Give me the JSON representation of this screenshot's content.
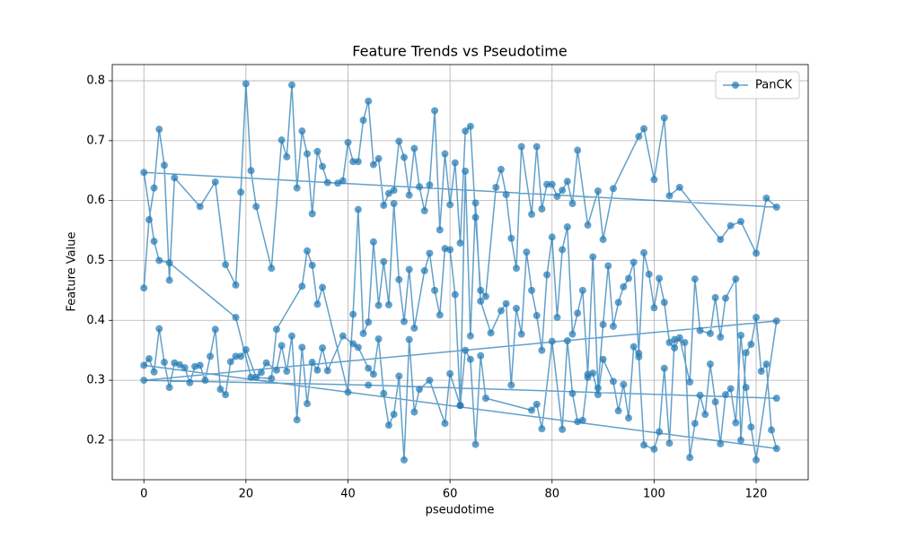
{
  "chart_data": {
    "type": "line",
    "title": "Feature Trends vs Pseudotime",
    "x_label": "pseudotime",
    "y_label": "Feature Value",
    "xlim": [
      -6.2,
      130.2
    ],
    "ylim": [
      0.134,
      0.827
    ],
    "xticks": [
      0,
      20,
      40,
      60,
      80,
      100,
      120
    ],
    "yticks": [
      0.2,
      0.3,
      0.4,
      0.5,
      0.6,
      0.7,
      0.8
    ],
    "grid": true,
    "legend": "upper right",
    "markers": true,
    "x": [
      0,
      1,
      2,
      3,
      4,
      5,
      6,
      11,
      14,
      16,
      18,
      19,
      20,
      21,
      22,
      25,
      27,
      28,
      29,
      30,
      31,
      32,
      33,
      34,
      35,
      36,
      38,
      39,
      40,
      41,
      42,
      43,
      44,
      45,
      46,
      47,
      48,
      49,
      50,
      51,
      52,
      53,
      54,
      55,
      56,
      57,
      58,
      59,
      60,
      61,
      62,
      63,
      64,
      65,
      66,
      67,
      69,
      70,
      71,
      72,
      73,
      74,
      76,
      77,
      78,
      79,
      80,
      81,
      82,
      83,
      84,
      85,
      87,
      89,
      90,
      92,
      97,
      98,
      100,
      102,
      103,
      105,
      113,
      115,
      117,
      120,
      122,
      124,
      0,
      2,
      3,
      5,
      18,
      21,
      25,
      26,
      31,
      32,
      33,
      34,
      35,
      40,
      41,
      42,
      43,
      44,
      45,
      46,
      47,
      48,
      49,
      50,
      51,
      52,
      53,
      55,
      56,
      57,
      58,
      59,
      60,
      61,
      62,
      63,
      64,
      65,
      66,
      68,
      70,
      71,
      72,
      73,
      74,
      75,
      76,
      77,
      78,
      79,
      80,
      81,
      82,
      83,
      84,
      85,
      86,
      87,
      88,
      89,
      90,
      91,
      92,
      93,
      94,
      95,
      96,
      97,
      98,
      99,
      100,
      101,
      102,
      103,
      104,
      105,
      107,
      108,
      109,
      111,
      112,
      113,
      114,
      116,
      117,
      118,
      119,
      120,
      121,
      122,
      123,
      124,
      0,
      1,
      2,
      3,
      4,
      5,
      6,
      7,
      8,
      9,
      10,
      11,
      12,
      13,
      14,
      15,
      16,
      17,
      18,
      19,
      20,
      22,
      23,
      24,
      26,
      27,
      28,
      29,
      30,
      31,
      32,
      33,
      34,
      35,
      36,
      39,
      41,
      42,
      44,
      45,
      46,
      47,
      48,
      49,
      50,
      51,
      52,
      53,
      54,
      56,
      59,
      60,
      62,
      63,
      64,
      65,
      66,
      67,
      76,
      77,
      78,
      80,
      82,
      83,
      84,
      85,
      86,
      87,
      88,
      89,
      90,
      92,
      93,
      94,
      95,
      96,
      97,
      98,
      100,
      101,
      102,
      103,
      104,
      106,
      107,
      108,
      109,
      110,
      111,
      112,
      113,
      114,
      115,
      116,
      117,
      118,
      119,
      120,
      124,
      0,
      44,
      124
    ],
    "series": [
      {
        "name": "PanCK",
        "color": "#1f77b4",
        "values": [
          0.454,
          0.568,
          0.621,
          0.719,
          0.659,
          0.467,
          0.638,
          0.59,
          0.631,
          0.493,
          0.459,
          0.614,
          0.795,
          0.65,
          0.59,
          0.487,
          0.701,
          0.673,
          0.793,
          0.621,
          0.716,
          0.678,
          0.578,
          0.682,
          0.657,
          0.63,
          0.629,
          0.633,
          0.697,
          0.665,
          0.665,
          0.734,
          0.766,
          0.66,
          0.67,
          0.592,
          0.612,
          0.617,
          0.699,
          0.672,
          0.609,
          0.687,
          0.623,
          0.583,
          0.626,
          0.75,
          0.551,
          0.678,
          0.593,
          0.663,
          0.529,
          0.716,
          0.724,
          0.572,
          0.45,
          0.44,
          0.622,
          0.652,
          0.61,
          0.537,
          0.487,
          0.69,
          0.577,
          0.69,
          0.586,
          0.627,
          0.627,
          0.607,
          0.617,
          0.632,
          0.595,
          0.684,
          0.559,
          0.616,
          0.535,
          0.62,
          0.707,
          0.72,
          0.635,
          0.738,
          0.608,
          0.622,
          0.535,
          0.558,
          0.565,
          0.512,
          0.604,
          0.589,
          0.647,
          0.532,
          0.5,
          0.496,
          0.405,
          0.305,
          0.303,
          0.385,
          0.457,
          0.516,
          0.492,
          0.427,
          0.455,
          0.28,
          0.41,
          0.585,
          0.378,
          0.397,
          0.531,
          0.425,
          0.498,
          0.426,
          0.595,
          0.468,
          0.398,
          0.485,
          0.387,
          0.483,
          0.512,
          0.45,
          0.409,
          0.52,
          0.518,
          0.443,
          0.258,
          0.649,
          0.374,
          0.596,
          0.432,
          0.379,
          0.416,
          0.428,
          0.292,
          0.42,
          0.377,
          0.514,
          0.45,
          0.408,
          0.35,
          0.476,
          0.539,
          0.405,
          0.518,
          0.556,
          0.377,
          0.412,
          0.45,
          0.31,
          0.506,
          0.287,
          0.393,
          0.491,
          0.39,
          0.43,
          0.456,
          0.47,
          0.497,
          0.345,
          0.513,
          0.477,
          0.421,
          0.47,
          0.43,
          0.363,
          0.354,
          0.371,
          0.297,
          0.469,
          0.383,
          0.378,
          0.438,
          0.372,
          0.437,
          0.469,
          0.2,
          0.346,
          0.36,
          0.405,
          0.315,
          0.327,
          0.217,
          0.186,
          0.325,
          0.336,
          0.314,
          0.386,
          0.33,
          0.288,
          0.329,
          0.326,
          0.321,
          0.296,
          0.323,
          0.325,
          0.3,
          0.34,
          0.385,
          0.285,
          0.276,
          0.331,
          0.34,
          0.34,
          0.351,
          0.305,
          0.313,
          0.329,
          0.317,
          0.358,
          0.315,
          0.374,
          0.234,
          0.355,
          0.261,
          0.33,
          0.317,
          0.354,
          0.316,
          0.374,
          0.361,
          0.355,
          0.32,
          0.31,
          0.369,
          0.278,
          0.225,
          0.243,
          0.307,
          0.167,
          0.368,
          0.247,
          0.285,
          0.3,
          0.228,
          0.311,
          0.258,
          0.35,
          0.335,
          0.193,
          0.341,
          0.27,
          0.25,
          0.26,
          0.219,
          0.365,
          0.218,
          0.366,
          0.278,
          0.231,
          0.233,
          0.305,
          0.312,
          0.276,
          0.335,
          0.298,
          0.249,
          0.293,
          0.237,
          0.356,
          0.339,
          0.192,
          0.185,
          0.214,
          0.32,
          0.195,
          0.368,
          0.363,
          0.171,
          0.228,
          0.275,
          0.243,
          0.327,
          0.264,
          0.194,
          0.276,
          0.286,
          0.229,
          0.375,
          0.288,
          0.222,
          0.167,
          0.399,
          0.3,
          0.292,
          0.27
        ]
      }
    ]
  }
}
